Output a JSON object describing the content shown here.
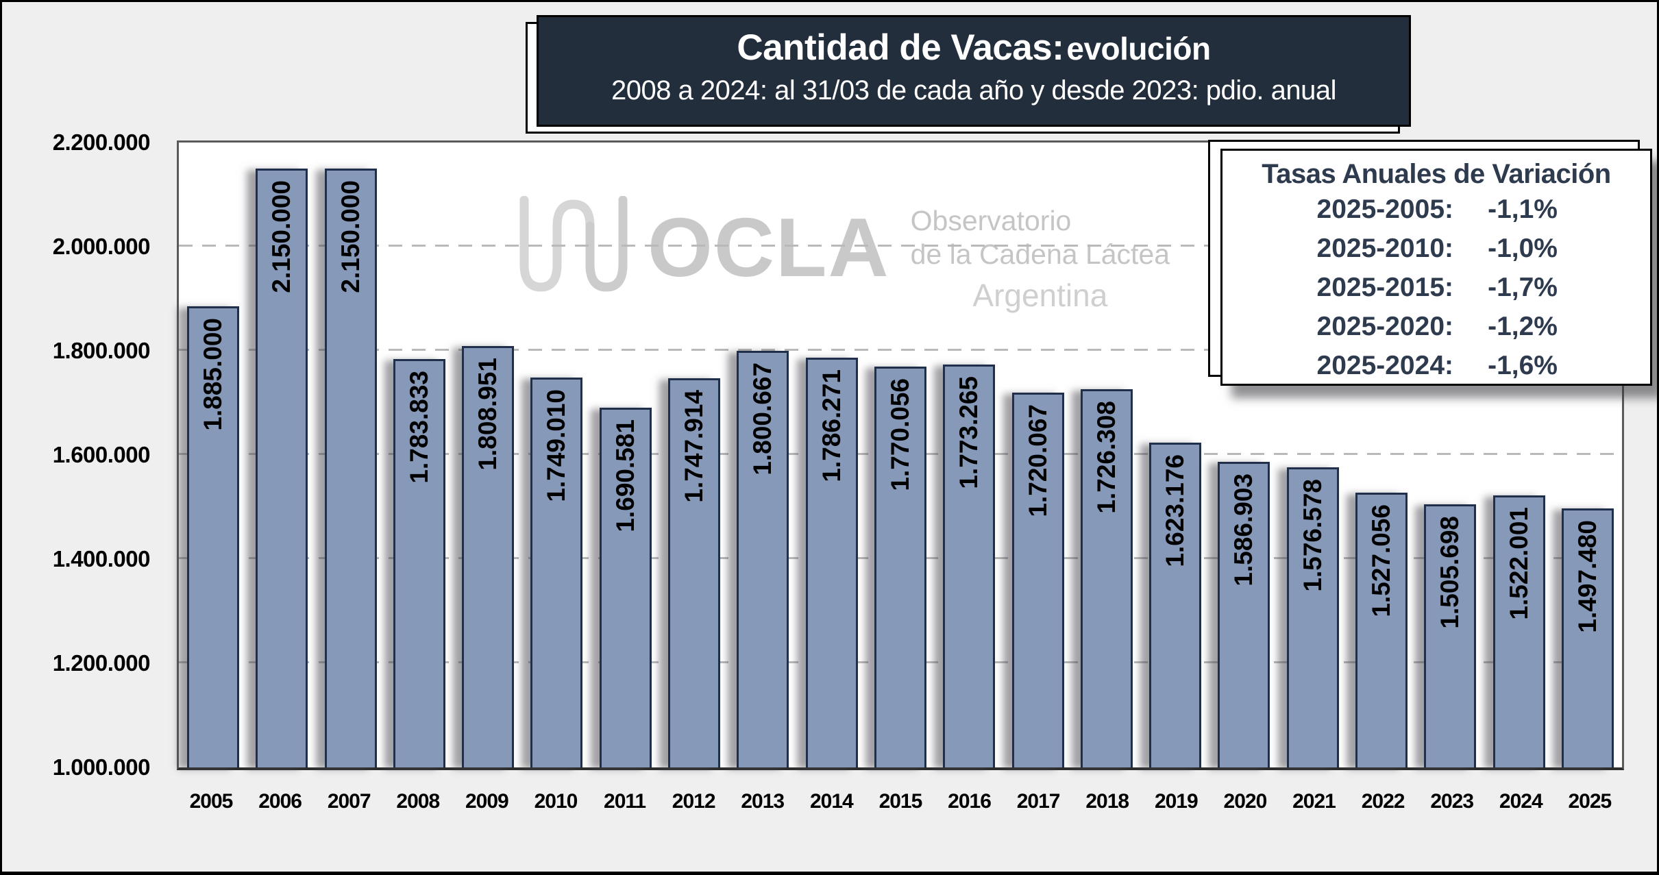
{
  "figure": {
    "title_main": "Cantidad de Vacas:",
    "title_accent": " evolución",
    "subtitle": "2008 a 2024: al 31/03 de cada año y desde 2023: pdio. anual"
  },
  "watermark": {
    "icon": "milk-wave-icon",
    "brand": "OCLA",
    "tagline_line1": "Observatorio",
    "tagline_line2": "de la Cadena Láctea",
    "tagline_line3": "Argentina"
  },
  "legend": {
    "title": "Tasas Anuales de Variación",
    "rows": [
      {
        "label": "2025-2005:",
        "value": "-1,1%"
      },
      {
        "label": "2025-2010:",
        "value": "-1,0%"
      },
      {
        "label": "2025-2015:",
        "value": "-1,7%"
      },
      {
        "label": "2025-2020:",
        "value": "-1,2%"
      },
      {
        "label": "2025-2024:",
        "value": "-1,6%"
      }
    ]
  },
  "chart_data": {
    "type": "bar",
    "title": "Cantidad de Vacas: evolución",
    "subtitle": "2008 a 2024: al 31/03 de cada año y desde 2023: pdio. anual",
    "categories": [
      "2005",
      "2006",
      "2007",
      "2008",
      "2009",
      "2010",
      "2011",
      "2012",
      "2013",
      "2014",
      "2015",
      "2016",
      "2017",
      "2018",
      "2019",
      "2020",
      "2021",
      "2022",
      "2023",
      "2024",
      "2025"
    ],
    "values": [
      1885000,
      2150000,
      2150000,
      1783833,
      1808951,
      1749010,
      1690581,
      1747914,
      1800667,
      1786271,
      1770056,
      1773265,
      1720067,
      1726308,
      1623176,
      1586903,
      1576578,
      1527056,
      1505698,
      1522001,
      1497480
    ],
    "value_labels": [
      "1.885.000",
      "2.150.000",
      "2.150.000",
      "1.783.833",
      "1.808.951",
      "1.749.010",
      "1.690.581",
      "1.747.914",
      "1.800.667",
      "1.786.271",
      "1.770.056",
      "1.773.265",
      "1.720.067",
      "1.726.308",
      "1.623.176",
      "1.586.903",
      "1.576.578",
      "1.527.056",
      "1.505.698",
      "1.522.001",
      "1.497.480"
    ],
    "xlabel": "",
    "ylabel": "",
    "ylim": [
      1000000,
      2200000
    ],
    "ytick_interval": 200000,
    "ytick_labels": [
      "2.200.000",
      "2.000.000",
      "1.800.000",
      "1.600.000",
      "1.400.000",
      "1.200.000",
      "1.000.000"
    ],
    "grid": "horizontal dashed",
    "legend_position": "top-right"
  },
  "colors": {
    "figure_background": "#EFEFF0",
    "plot_background": "#FFFFFF",
    "title_box_background": "#232E3C",
    "title_text": "#FFFFFF",
    "bar_fill": "#8699B8",
    "bar_border": "#20304A",
    "bar_value_text": "#000000",
    "legend_text": "#2E3A4E",
    "gridline": "#B9B9B9",
    "watermark_gray": "#C9C9C9"
  }
}
